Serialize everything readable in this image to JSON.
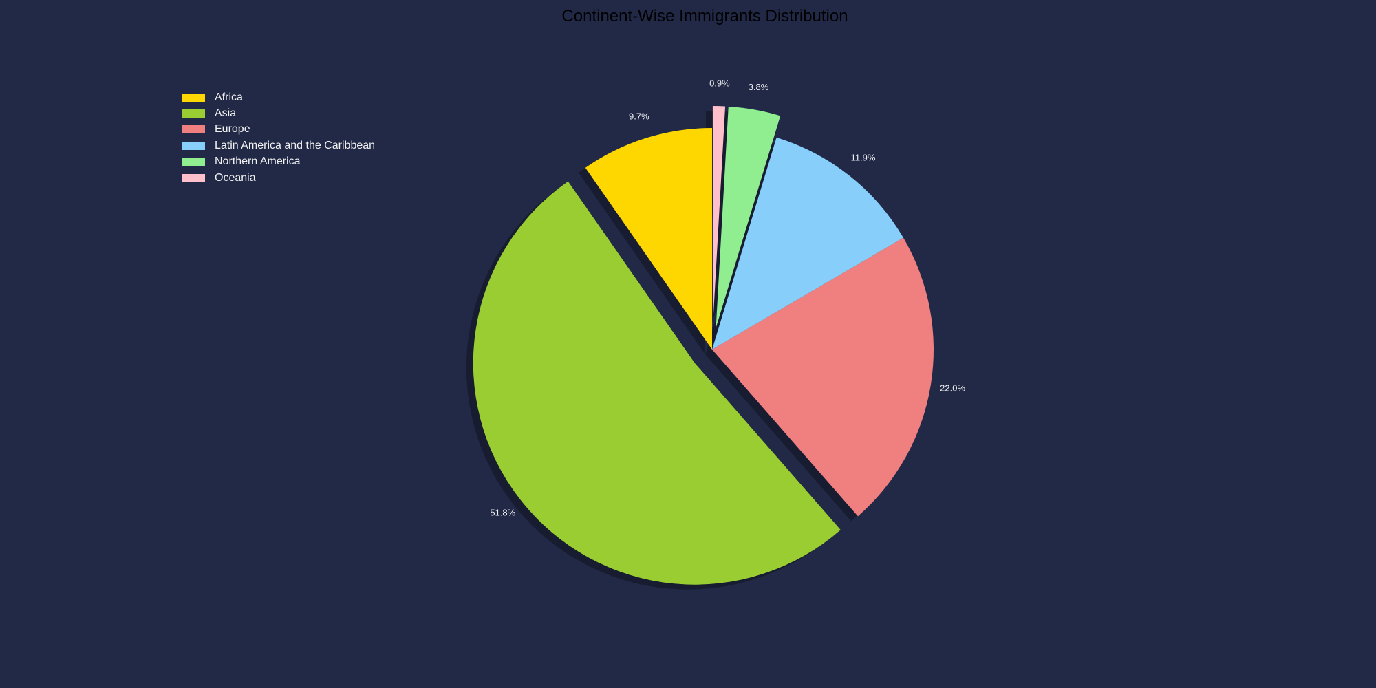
{
  "chart_data": {
    "type": "pie",
    "title": "Continent-Wise Immigrants Distribution",
    "slices": [
      {
        "name": "Africa",
        "value": 9.7,
        "label": "9.7%",
        "color": "#FFD700",
        "exploded": false
      },
      {
        "name": "Asia",
        "value": 51.8,
        "label": "51.8%",
        "color": "#9ACD32",
        "exploded": true
      },
      {
        "name": "Europe",
        "value": 22.0,
        "label": "22.0%",
        "color": "#F08080",
        "exploded": false
      },
      {
        "name": "Latin America and the Caribbean",
        "value": 11.9,
        "label": "11.9%",
        "color": "#87CEFA",
        "exploded": false
      },
      {
        "name": "Northern America",
        "value": 3.8,
        "label": "3.8%",
        "color": "#90EE90",
        "exploded": true
      },
      {
        "name": "Oceania",
        "value": 0.9,
        "label": "0.9%",
        "color": "#FFC0CB",
        "exploded": true
      }
    ],
    "start_angle_deg": 90,
    "direction": "counterclockwise",
    "shadow": true,
    "legend_position": "upper-left",
    "background_color": "#212946"
  }
}
